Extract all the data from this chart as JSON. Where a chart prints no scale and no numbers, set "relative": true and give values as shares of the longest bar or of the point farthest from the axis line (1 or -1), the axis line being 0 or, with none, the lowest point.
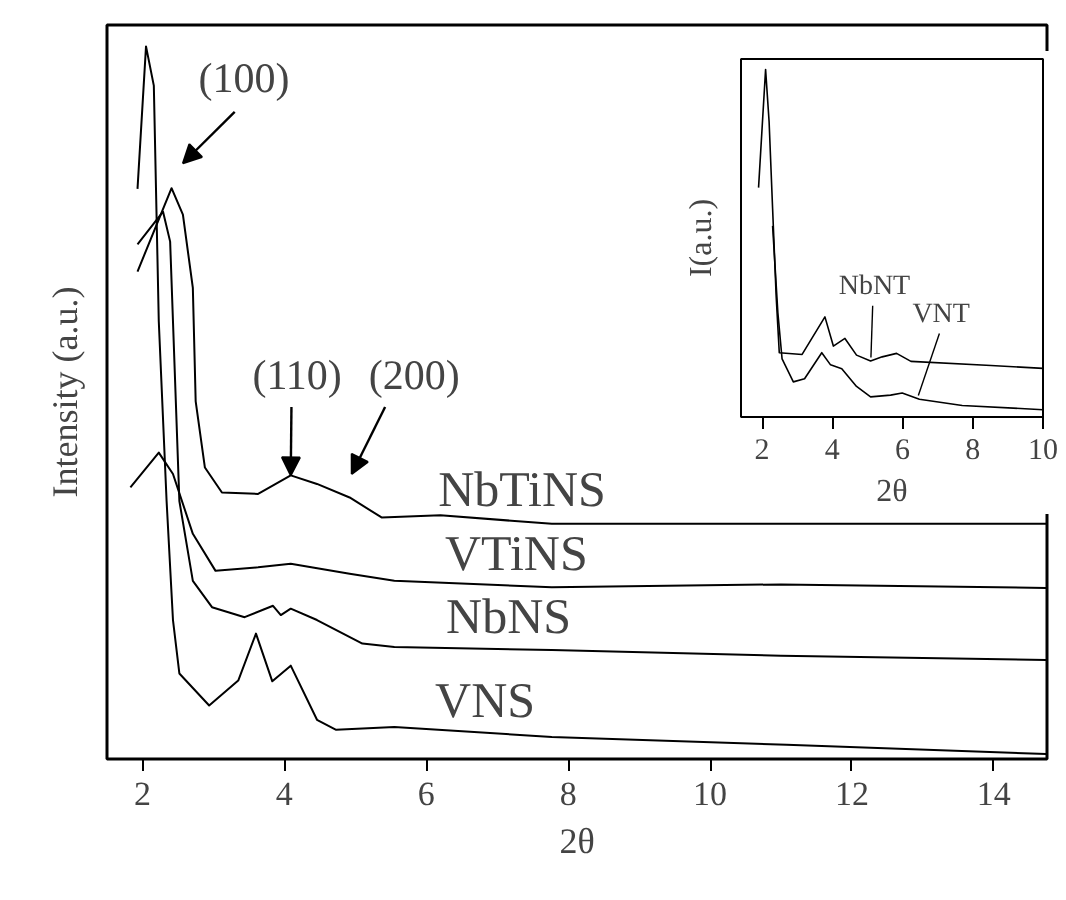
{
  "chart_data": [
    {
      "type": "line",
      "relative": true,
      "xlabel": "2θ",
      "ylabel": "Intensity (a.u.)",
      "xlim": [
        1.5,
        14.75
      ],
      "xticks": [
        2,
        4,
        6,
        8,
        10,
        12,
        14
      ],
      "tick_labels": "x",
      "grid": false,
      "series": [
        {
          "name": "NbTiNS",
          "color": "#000000",
          "x": [
            1.93,
            2.41,
            2.57,
            2.71,
            2.75,
            2.88,
            3.12,
            3.63,
            4.09,
            4.46,
            4.92,
            5.37,
            6.2,
            7.77,
            10.0,
            14.74
          ],
          "values": [
            0.684,
            0.801,
            0.764,
            0.661,
            0.502,
            0.409,
            0.374,
            0.372,
            0.398,
            0.386,
            0.367,
            0.339,
            0.342,
            0.33,
            0.33,
            0.33
          ]
        },
        {
          "name": "VTiNS",
          "color": "#000000",
          "x": [
            1.83,
            2.23,
            2.43,
            2.71,
            3.03,
            3.63,
            4.09,
            4.92,
            5.55,
            7.77,
            11.0,
            14.74
          ],
          "values": [
            0.381,
            0.43,
            0.4,
            0.316,
            0.264,
            0.269,
            0.274,
            0.26,
            0.25,
            0.241,
            0.245,
            0.24
          ]
        },
        {
          "name": "NbNS",
          "color": "#000000",
          "x": [
            1.93,
            2.29,
            2.39,
            2.52,
            2.71,
            2.98,
            3.44,
            3.84,
            3.95,
            4.09,
            4.46,
            5.1,
            5.55,
            7.77,
            11.0,
            14.74
          ],
          "values": [
            0.722,
            0.768,
            0.726,
            0.362,
            0.25,
            0.213,
            0.199,
            0.215,
            0.202,
            0.211,
            0.195,
            0.162,
            0.157,
            0.153,
            0.145,
            0.139
          ]
        },
        {
          "name": "VNS",
          "color": "#000000",
          "x": [
            1.93,
            2.05,
            2.16,
            2.23,
            2.34,
            2.43,
            2.52,
            2.94,
            3.35,
            3.6,
            3.83,
            4.09,
            4.46,
            4.73,
            5.55,
            7.77,
            11.08,
            14.74
          ],
          "values": [
            0.8,
            1.0,
            0.945,
            0.614,
            0.362,
            0.195,
            0.12,
            0.075,
            0.11,
            0.176,
            0.109,
            0.131,
            0.055,
            0.041,
            0.045,
            0.031,
            0.02,
            0.007
          ]
        }
      ],
      "annotations": [
        "(100)",
        {
          "text": "(110)",
          "x": 4.09,
          "y": 0.398
        },
        "(200)"
      ]
    },
    {
      "type": "line",
      "relative": true,
      "xlabel": "2θ",
      "ylabel": "I(a.u.)",
      "xlim": [
        1.4,
        10
      ],
      "xticks": [
        2,
        4,
        6,
        8,
        10
      ],
      "tick_labels": "x",
      "grid": false,
      "series": [
        {
          "name": "NbNT",
          "color": "#000000",
          "x": [
            1.9,
            2.1,
            2.2,
            2.3,
            2.4,
            2.49,
            3.14,
            3.79,
            4.03,
            4.36,
            4.69,
            5.09,
            5.42,
            5.83,
            6.24,
            8.52,
            10.0
          ],
          "values": [
            0.66,
            1.0,
            0.85,
            0.6,
            0.35,
            0.185,
            0.18,
            0.288,
            0.204,
            0.226,
            0.178,
            0.161,
            0.173,
            0.183,
            0.16,
            0.148,
            0.14
          ]
        },
        {
          "name": "VNT",
          "color": "#000000",
          "x": [
            2.3,
            2.45,
            2.57,
            2.89,
            3.21,
            3.7,
            3.95,
            4.27,
            4.69,
            5.09,
            5.66,
            5.99,
            6.48,
            7.7,
            10.0
          ],
          "values": [
            0.55,
            0.3,
            0.167,
            0.101,
            0.11,
            0.185,
            0.15,
            0.139,
            0.088,
            0.058,
            0.063,
            0.069,
            0.051,
            0.033,
            0.021
          ]
        }
      ]
    }
  ]
}
